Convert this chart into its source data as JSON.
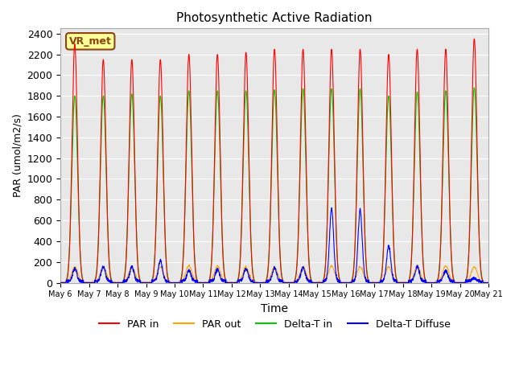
{
  "title": "Photosynthetic Active Radiation",
  "ylabel": "PAR (umol/m2/s)",
  "xlabel": "Time",
  "ylim": [
    0,
    2450
  ],
  "yticks": [
    0,
    200,
    400,
    600,
    800,
    1000,
    1200,
    1400,
    1600,
    1800,
    2000,
    2200,
    2400
  ],
  "x_tick_labels": [
    "May 6",
    "May 7",
    "May 8",
    "May 9",
    "May 10",
    "May 11",
    "May 12",
    "May 13",
    "May 14",
    "May 15",
    "May 16",
    "May 17",
    "May 18",
    "May 19",
    "May 20",
    "May 21"
  ],
  "n_days": 15,
  "colors": {
    "PAR_in": "#ff0000",
    "PAR_out": "#ffa500",
    "Delta_T_in": "#00cc00",
    "Delta_T_Diffuse": "#0000ff"
  },
  "legend_label": "VR_met",
  "background_color": "#e8e8e8",
  "grid_color": "#ffffff",
  "par_in_peaks": [
    2300,
    2150,
    2150,
    2150,
    2200,
    2200,
    2220,
    2250,
    2250,
    2250,
    2250,
    2200,
    2250,
    2250,
    2350
  ],
  "par_out_peaks": [
    150,
    150,
    150,
    150,
    160,
    160,
    150,
    150,
    150,
    160,
    150,
    150,
    160,
    160,
    150
  ],
  "delta_t_in_peaks": [
    1800,
    1800,
    1820,
    1800,
    1850,
    1850,
    1850,
    1860,
    1870,
    1870,
    1870,
    1800,
    1840,
    1850,
    1880
  ],
  "delta_t_diff_peaks": [
    120,
    140,
    140,
    200,
    100,
    110,
    120,
    130,
    130,
    700,
    690,
    340,
    140,
    100,
    30
  ]
}
